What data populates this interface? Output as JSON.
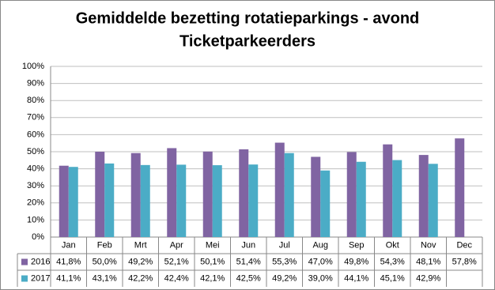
{
  "chart_data": {
    "type": "bar",
    "title": "Gemiddelde bezetting rotatieparkings - avond",
    "subtitle": "Ticketparkeerders",
    "categories": [
      "Jan",
      "Feb",
      "Mrt",
      "Apr",
      "Mei",
      "Jun",
      "Jul",
      "Aug",
      "Sep",
      "Okt",
      "Nov",
      "Dec"
    ],
    "series": [
      {
        "name": "2016",
        "color": "#8064a2",
        "values": [
          41.8,
          50.0,
          49.2,
          52.1,
          50.1,
          51.4,
          55.3,
          47.0,
          49.8,
          54.3,
          48.1,
          57.8
        ],
        "value_labels": [
          "41,8%",
          "50,0%",
          "49,2%",
          "52,1%",
          "50,1%",
          "51,4%",
          "55,3%",
          "47,0%",
          "49,8%",
          "54,3%",
          "48,1%",
          "57,8%"
        ]
      },
      {
        "name": "2017",
        "color": "#4bacc6",
        "values": [
          41.1,
          43.1,
          42.2,
          42.4,
          42.1,
          42.5,
          49.2,
          39.0,
          44.1,
          45.1,
          42.9,
          null
        ],
        "value_labels": [
          "41,1%",
          "43,1%",
          "42,2%",
          "42,4%",
          "42,1%",
          "42,5%",
          "49,2%",
          "39,0%",
          "44,1%",
          "45,1%",
          "42,9%",
          null
        ]
      }
    ],
    "ylim": [
      0,
      100
    ],
    "yticks": [
      {
        "value": 0,
        "label": "0%"
      },
      {
        "value": 10,
        "label": "10%"
      },
      {
        "value": 20,
        "label": "20%"
      },
      {
        "value": 30,
        "label": "30%"
      },
      {
        "value": 40,
        "label": "40%"
      },
      {
        "value": 50,
        "label": "50%"
      },
      {
        "value": 60,
        "label": "60%"
      },
      {
        "value": 70,
        "label": "70%"
      },
      {
        "value": 80,
        "label": "80%"
      },
      {
        "value": 90,
        "label": "90%"
      },
      {
        "value": 100,
        "label": "100%"
      }
    ],
    "grid": true
  }
}
